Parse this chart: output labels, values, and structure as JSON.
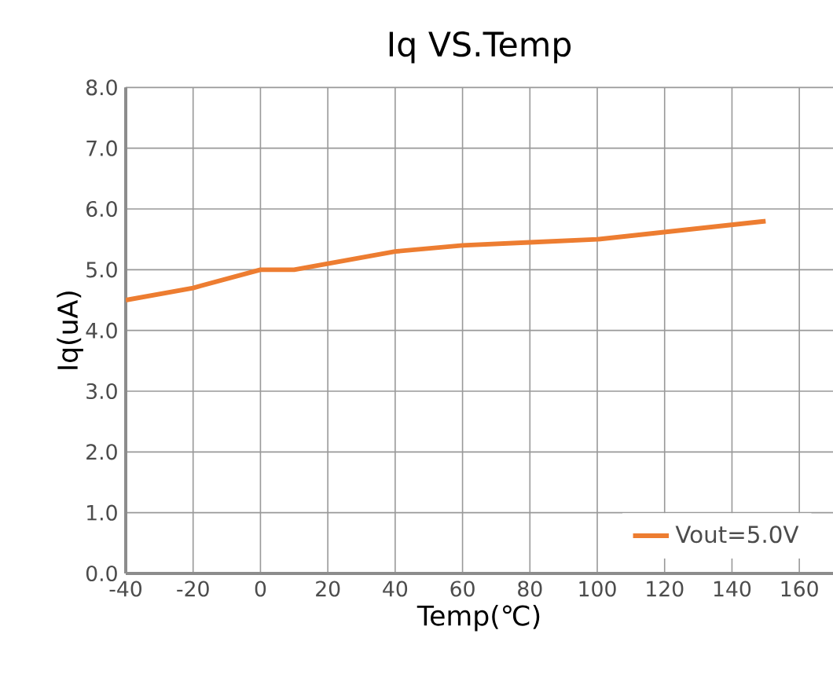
{
  "chart_data": {
    "type": "line",
    "title": "Iq VS.Temp",
    "xlabel": "Temp(℃)",
    "ylabel": "Iq(uA)",
    "x": [
      -40,
      -20,
      0,
      10,
      40,
      60,
      80,
      100,
      150
    ],
    "series": [
      {
        "name": "Vout=5.0V",
        "color": "#ed7d31",
        "values": [
          4.5,
          4.7,
          5.0,
          5.0,
          5.3,
          5.4,
          5.45,
          5.5,
          5.8
        ]
      }
    ],
    "xlim": [
      -40,
      170
    ],
    "ylim": [
      0,
      8
    ],
    "xticks": [
      -40,
      -20,
      0,
      20,
      40,
      60,
      80,
      100,
      120,
      140,
      160
    ],
    "yticks": [
      {
        "value": 0,
        "label": "0.0"
      },
      {
        "value": 1,
        "label": "1.0"
      },
      {
        "value": 2,
        "label": "2.0"
      },
      {
        "value": 3,
        "label": "3.0"
      },
      {
        "value": 4,
        "label": "4.0"
      },
      {
        "value": 5,
        "label": "5.0"
      },
      {
        "value": 6,
        "label": "6.0"
      },
      {
        "value": 7,
        "label": "7.0"
      },
      {
        "value": 8,
        "label": "8.0"
      }
    ],
    "grid": true,
    "legend": "bottom right",
    "marker": "none",
    "line_style": "solid"
  }
}
